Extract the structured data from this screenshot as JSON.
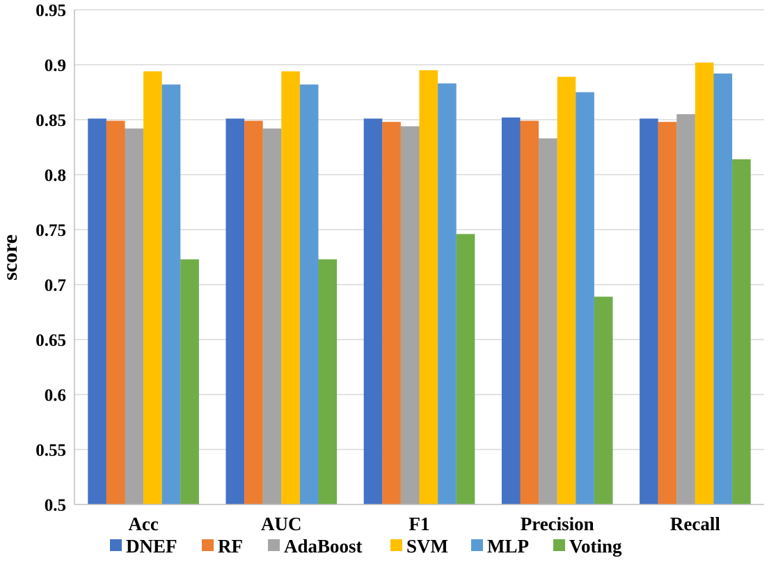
{
  "chart_data": {
    "type": "bar",
    "title": "",
    "xlabel": "",
    "ylabel": "score",
    "ylim": [
      0.5,
      0.95
    ],
    "yticks": [
      "0.5",
      "0.55",
      "0.6",
      "0.65",
      "0.7",
      "0.75",
      "0.8",
      "0.85",
      "0.9",
      "0.95"
    ],
    "grid": true,
    "legend_position": "bottom",
    "categories": [
      "Acc",
      "AUC",
      "F1",
      "Precision",
      "Recall"
    ],
    "series": [
      {
        "name": "DNEF",
        "color": "#4472c4",
        "values": [
          0.851,
          0.851,
          0.851,
          0.852,
          0.851
        ]
      },
      {
        "name": "RF",
        "color": "#ed7d31",
        "values": [
          0.849,
          0.849,
          0.848,
          0.849,
          0.848
        ]
      },
      {
        "name": "AdaBoost",
        "color": "#a5a5a5",
        "values": [
          0.842,
          0.842,
          0.844,
          0.833,
          0.855
        ]
      },
      {
        "name": "SVM",
        "color": "#ffc000",
        "values": [
          0.894,
          0.894,
          0.895,
          0.889,
          0.902
        ]
      },
      {
        "name": "MLP",
        "color": "#5b9bd5",
        "values": [
          0.882,
          0.882,
          0.883,
          0.875,
          0.892
        ]
      },
      {
        "name": "Voting",
        "color": "#70ad47",
        "values": [
          0.723,
          0.723,
          0.746,
          0.689,
          0.814
        ]
      }
    ]
  }
}
